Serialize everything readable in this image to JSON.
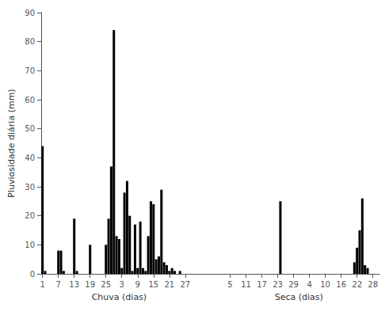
{
  "chart_data": {
    "type": "bar",
    "ylabel": "Pluviosidade diária (mm)",
    "annotations": [
      "Chuva (dias)",
      "Seca (dias)"
    ],
    "categories": [
      "1",
      null,
      null,
      null,
      null,
      null,
      "7",
      null,
      null,
      null,
      null,
      null,
      "13",
      null,
      null,
      null,
      null,
      null,
      "19",
      null,
      null,
      null,
      null,
      null,
      "25",
      null,
      null,
      null,
      null,
      null,
      "3",
      null,
      null,
      null,
      null,
      null,
      "9",
      null,
      null,
      null,
      null,
      null,
      "15",
      null,
      null,
      null,
      null,
      null,
      "21",
      null,
      null,
      null,
      null,
      null,
      "27",
      null,
      null,
      null,
      null,
      null,
      null,
      null,
      null,
      null,
      null,
      null,
      null,
      null,
      null,
      null,
      null,
      "5",
      null,
      null,
      null,
      null,
      null,
      "11",
      null,
      null,
      null,
      null,
      null,
      "17",
      null,
      null,
      null,
      null,
      null,
      "23",
      null,
      null,
      null,
      null,
      null,
      "29",
      null,
      null,
      null,
      null,
      null,
      "4",
      null,
      null,
      null,
      null,
      null,
      "10",
      null,
      null,
      null,
      null,
      null,
      "16",
      null,
      null,
      null,
      null,
      null,
      "22",
      null,
      null,
      null,
      null,
      null,
      "28",
      null,
      null
    ],
    "values": [
      44,
      1,
      0,
      0,
      0,
      0,
      8,
      8,
      1,
      0,
      0,
      0,
      19,
      1,
      0,
      0,
      0,
      0,
      10,
      0,
      0,
      0,
      0,
      0,
      10,
      19,
      37,
      84,
      13,
      12,
      2,
      28,
      32,
      20,
      1,
      17,
      2,
      18,
      2,
      1,
      13,
      25,
      24,
      5,
      6,
      29,
      4,
      3,
      1,
      2,
      1,
      0,
      1,
      0,
      0,
      0,
      0,
      0,
      0,
      null,
      null,
      null,
      null,
      null,
      null,
      null,
      null,
      0,
      0,
      0,
      0,
      0,
      0,
      0,
      0,
      0,
      0,
      0,
      0,
      0,
      0,
      0,
      0,
      0,
      0,
      0,
      0,
      0,
      0,
      0,
      25,
      0,
      0,
      0,
      0,
      0,
      0,
      0,
      0,
      0,
      0,
      0,
      0,
      0,
      0,
      0,
      0,
      0,
      0,
      0,
      0,
      0,
      0,
      0,
      0,
      0,
      0,
      0,
      4,
      9,
      15,
      26,
      3,
      2,
      0,
      0,
      0,
      0
    ],
    "color": "#000000",
    "ylim": [
      0,
      90
    ],
    "yticks": [
      0,
      10,
      20,
      30,
      40,
      50,
      60,
      70,
      80,
      90
    ],
    "grid": false
  }
}
